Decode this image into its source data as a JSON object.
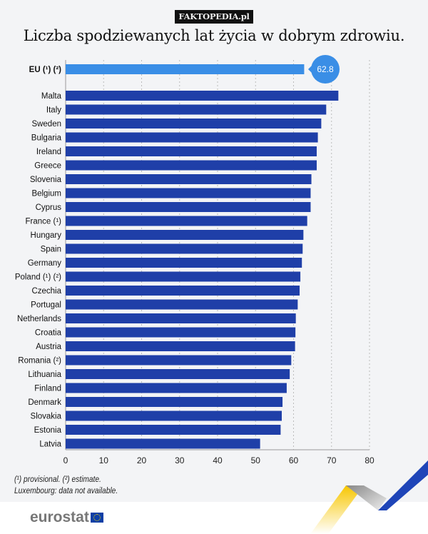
{
  "badge": "FAKTOPEDIA.pl",
  "title": "Liczba spodziewanych lat życia w dobrym zdrowiu.",
  "notes": [
    "(¹) provisional. (²) estimate.",
    "Luxembourg: data not available."
  ],
  "logo": "eurostat",
  "colors": {
    "eu_bar": "#3a8ee6",
    "country_bar": "#1f3fa8",
    "background": "#f3f4f6"
  },
  "chart_data": {
    "type": "bar",
    "orientation": "horizontal",
    "title": "Liczba spodziewanych lat życia w dobrym zdrowiu.",
    "xlim": [
      0,
      80
    ],
    "xticks": [
      0,
      10,
      20,
      30,
      40,
      50,
      60,
      70,
      80
    ],
    "grid": true,
    "highlight": {
      "category": "EU (¹) (²)",
      "value": 62.8,
      "label": "62.8"
    },
    "categories": [
      "Malta",
      "Italy",
      "Sweden",
      "Bulgaria",
      "Ireland",
      "Greece",
      "Slovenia",
      "Belgium",
      "Cyprus",
      "France (¹)",
      "Hungary",
      "Spain",
      "Germany",
      "Poland (¹) (²)",
      "Czechia",
      "Portugal",
      "Netherlands",
      "Croatia",
      "Austria",
      "Romania (²)",
      "Lithuania",
      "Finland",
      "Denmark",
      "Slovakia",
      "Estonia",
      "Latvia"
    ],
    "values": [
      71.8,
      68.6,
      67.3,
      66.4,
      66.1,
      66.1,
      64.7,
      64.5,
      64.5,
      63.6,
      62.6,
      62.4,
      62.2,
      61.8,
      61.6,
      61.1,
      60.6,
      60.5,
      60.4,
      59.4,
      59.0,
      58.2,
      57.1,
      56.9,
      56.6,
      51.2
    ]
  }
}
